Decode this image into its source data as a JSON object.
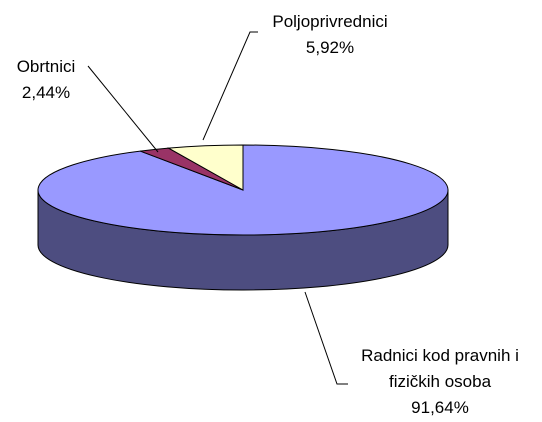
{
  "chart_data": {
    "type": "pie",
    "categories": [
      "Radnici kod pravnih i fizičkih osoba",
      "Obrtnici",
      "Poljoprivrednici"
    ],
    "values": [
      91.64,
      2.44,
      5.92
    ],
    "value_labels": [
      "91,64%",
      "2,44%",
      "5,92%"
    ],
    "colors": [
      "#9999ff",
      "#993366",
      "#ffffcc"
    ]
  }
}
